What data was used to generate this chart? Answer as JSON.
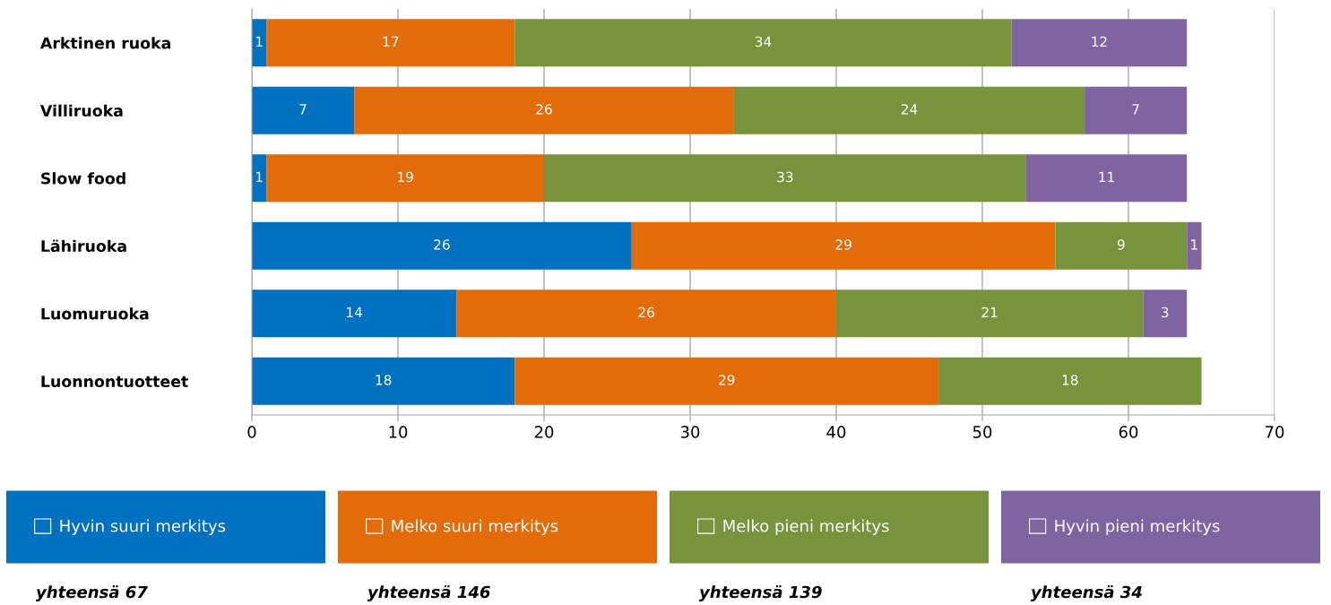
{
  "chart_data": {
    "type": "bar",
    "orientation": "horizontal",
    "stacked": true,
    "categories": [
      "Arktinen ruoka",
      "Villiruoka",
      "Slow food",
      "Lähiruoka",
      "Luomuruoka",
      "Luonnontuotteet"
    ],
    "series": [
      {
        "name": "Hyvin suuri merkitys",
        "color": "#0070c0",
        "values": [
          1,
          7,
          1,
          26,
          14,
          18
        ]
      },
      {
        "name": "Melko suuri merkitys",
        "color": "#e36c09",
        "values": [
          17,
          26,
          19,
          29,
          26,
          29
        ]
      },
      {
        "name": "Melko pieni merkitys",
        "color": "#77933c",
        "values": [
          34,
          24,
          33,
          9,
          21,
          18
        ]
      },
      {
        "name": "Hyvin pieni merkitys",
        "color": "#8064a2",
        "values": [
          12,
          7,
          11,
          1,
          3,
          null
        ]
      }
    ],
    "xlim": [
      0,
      70
    ],
    "xticks": [
      0,
      10,
      20,
      30,
      40,
      50,
      60,
      70
    ],
    "grid": "x",
    "legend": "bottom",
    "data_labels": true,
    "annotations": [
      "yhteensä 67",
      "yhteensä 146",
      "yhteensä 139",
      "yhteensä 34"
    ]
  }
}
